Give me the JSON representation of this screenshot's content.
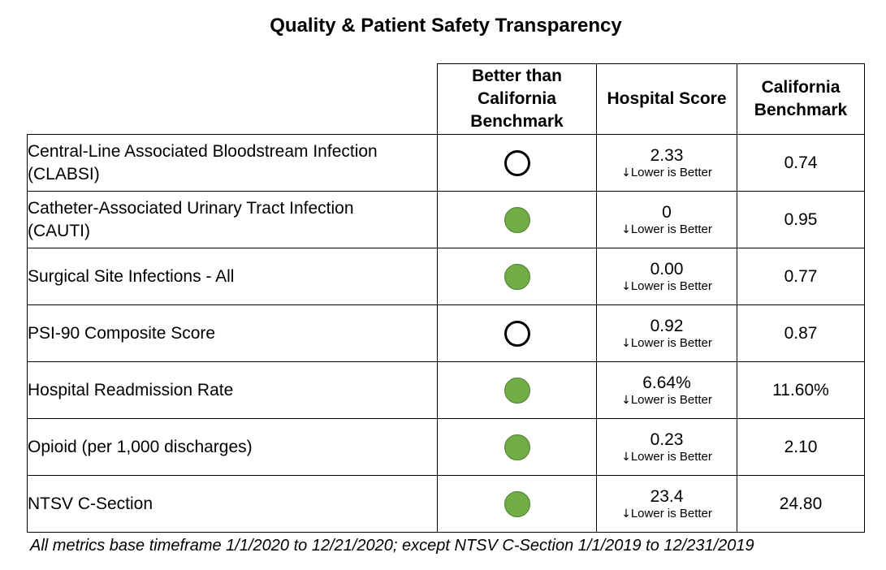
{
  "title": "Quality & Patient Safety Transparency",
  "headers": {
    "better": [
      "Better than",
      "California",
      "Benchmark"
    ],
    "score": "Hospital Score",
    "benchmark": [
      "California",
      "Benchmark"
    ]
  },
  "rows": [
    {
      "metric": [
        "Central-Line Associated Bloodstream Infection",
        "(CLABSI)"
      ],
      "better": false,
      "score": "2.33",
      "note": "Lower is Better",
      "benchmark": "0.74"
    },
    {
      "metric": [
        "Catheter-Associated Urinary Tract Infection",
        "(CAUTI)"
      ],
      "better": true,
      "score": "0",
      "note": "Lower is Better",
      "benchmark": "0.95"
    },
    {
      "metric": [
        "Surgical Site Infections - All"
      ],
      "better": true,
      "score": "0.00",
      "note": "Lower is Better",
      "benchmark": "0.77"
    },
    {
      "metric": [
        "PSI-90 Composite Score"
      ],
      "better": false,
      "score": "0.92",
      "note": "Lower is Better",
      "benchmark": "0.87"
    },
    {
      "metric": [
        "Hospital Readmission Rate"
      ],
      "better": true,
      "score": "6.64%",
      "note": "Lower is Better",
      "benchmark": "11.60%"
    },
    {
      "metric": [
        "Opioid (per 1,000 discharges)"
      ],
      "better": true,
      "score": "0.23",
      "note": "Lower is Better",
      "benchmark": "2.10"
    },
    {
      "metric": [
        "NTSV C-Section"
      ],
      "better": true,
      "score": "23.4",
      "note": "Lower is Better",
      "benchmark": "24.80"
    }
  ],
  "icons": {
    "better_yes": "filled-green-circle-icon",
    "better_no": "empty-circle-icon",
    "note_arrow": "down-arrow-icon"
  },
  "colors": {
    "better_fill": "#70ad47",
    "not_better_fill": "#ffffff"
  },
  "footnote": "All metrics base timeframe 1/1/2020 to 12/21/2020; except NTSV C-Section 1/1/2019 to 12/231/2019"
}
